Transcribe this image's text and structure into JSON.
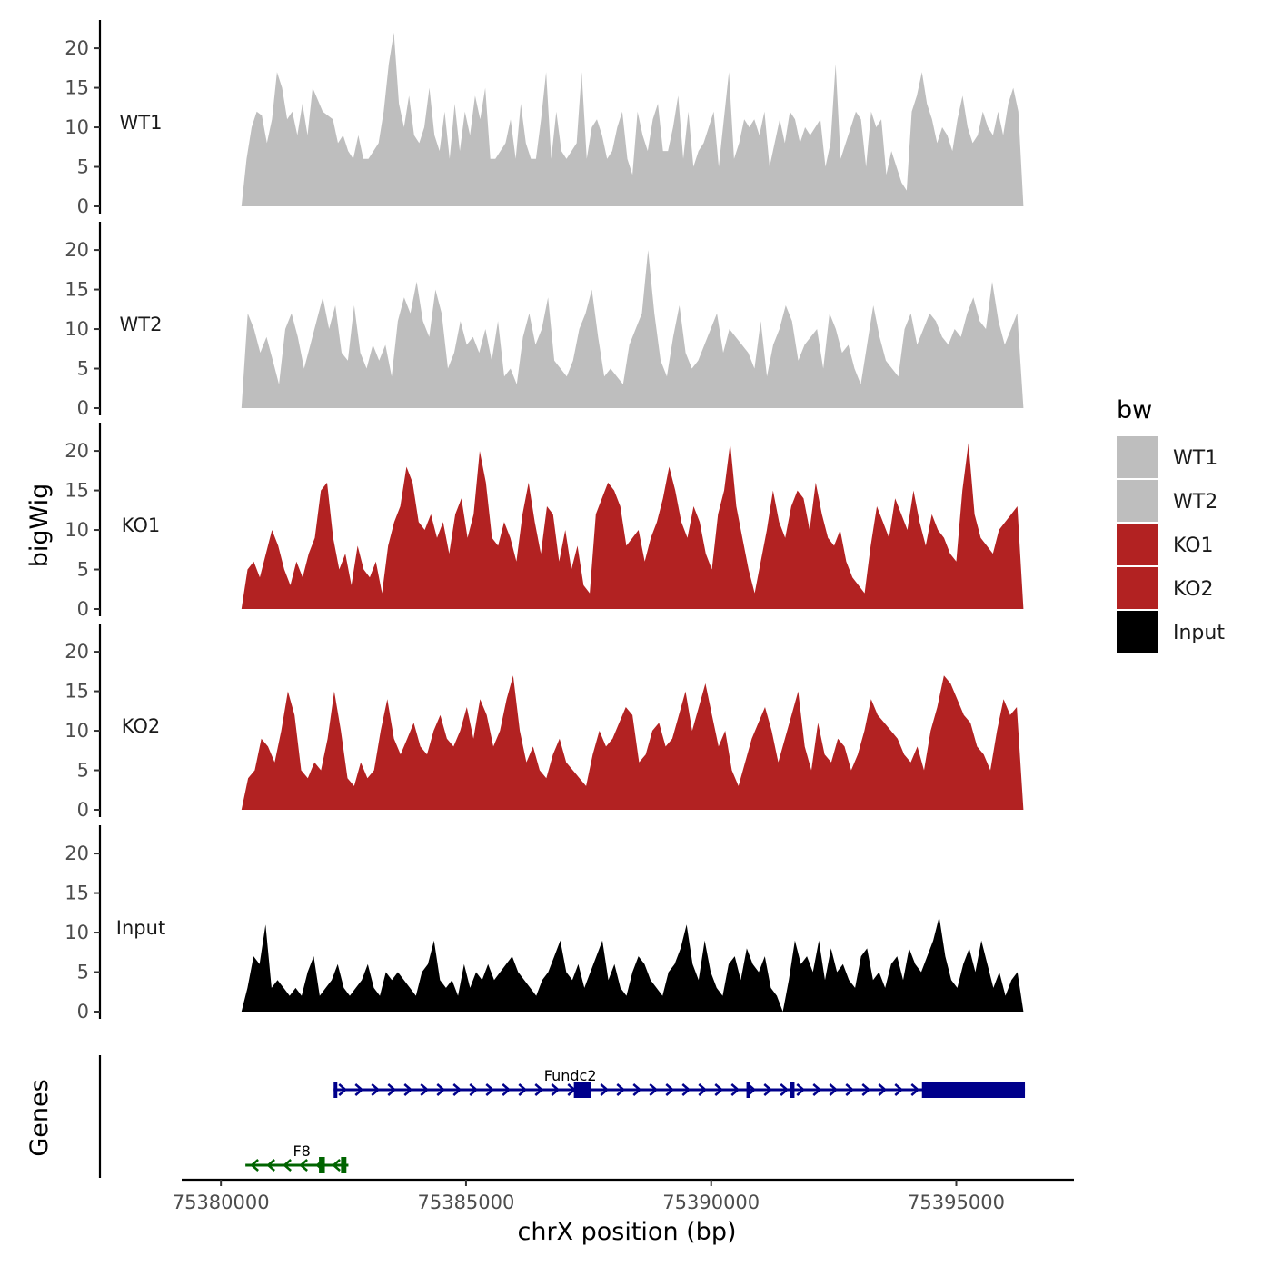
{
  "chart_data": {
    "type": "area",
    "xlabel": "chrX position (bp)",
    "ylabel": "bigWig",
    "genes_label": "Genes",
    "xlim": [
      75379200,
      75397400
    ],
    "x_ticks": [
      75380000,
      75385000,
      75390000,
      75395000
    ],
    "x_tick_labels": [
      "75380000",
      "75385000",
      "75390000",
      "75395000"
    ],
    "ylim": [
      0,
      23
    ],
    "y_ticks": [
      0,
      5,
      10,
      15,
      20
    ],
    "y_tick_labels": [
      "0",
      "5",
      "10",
      "15",
      "20"
    ],
    "legend": {
      "title": "bw",
      "position": "right",
      "entries": [
        {
          "label": "WT1",
          "color": "#bebebe"
        },
        {
          "label": "WT2",
          "color": "#bebebe"
        },
        {
          "label": "KO1",
          "color": "#b22222"
        },
        {
          "label": "KO2",
          "color": "#b22222"
        },
        {
          "label": "Input",
          "color": "#000000"
        }
      ]
    },
    "tracks": [
      {
        "name": "WT1",
        "color": "#bebebe",
        "x_start": 75380420,
        "x_end": 75396370,
        "values": [
          0,
          6,
          10,
          12,
          11.5,
          8,
          11,
          17,
          15,
          11,
          12,
          9,
          13,
          9,
          15,
          13.5,
          12,
          11.5,
          11,
          8,
          9,
          7,
          6,
          9,
          6,
          6,
          7,
          8,
          12,
          18,
          22,
          13,
          10,
          14,
          9,
          8,
          10,
          15,
          9,
          7,
          12,
          6,
          13,
          7,
          12,
          9,
          14,
          11,
          15,
          6,
          6,
          7,
          8,
          11,
          6,
          13,
          8,
          6,
          6,
          11,
          17,
          6,
          12,
          7,
          6,
          7,
          8,
          17,
          6,
          10,
          11,
          9,
          6,
          7,
          10,
          12,
          6,
          4,
          12,
          9,
          7,
          11,
          13,
          7,
          7,
          10,
          14,
          6,
          12,
          5,
          7,
          8,
          10,
          12,
          5,
          11,
          17,
          6,
          8,
          11,
          10,
          11,
          9,
          12,
          5,
          8,
          11,
          8,
          12,
          11,
          8,
          10,
          9,
          10,
          11,
          5,
          8,
          18,
          6,
          8,
          10,
          12,
          11,
          5,
          12,
          10,
          11,
          4,
          7,
          5,
          3,
          2,
          12,
          14,
          17,
          13,
          11,
          8,
          10,
          9,
          7,
          11,
          14,
          10,
          8,
          9,
          12,
          10,
          9,
          12,
          9,
          13,
          15,
          12,
          0
        ]
      },
      {
        "name": "WT2",
        "color": "#bebebe",
        "x_start": 75380420,
        "x_end": 75396370,
        "values": [
          0,
          12,
          10,
          7,
          9,
          6,
          3,
          10,
          12,
          9,
          5,
          8,
          11,
          14,
          10,
          13,
          7,
          6,
          13,
          7,
          5,
          8,
          6,
          8,
          4,
          11,
          14,
          12,
          16,
          11,
          9,
          15,
          12,
          5,
          7,
          11,
          8,
          9,
          7,
          10,
          6,
          11,
          4,
          5,
          3,
          9,
          12,
          8,
          10,
          14,
          6,
          5,
          4,
          6,
          10,
          12,
          15,
          9,
          4,
          5,
          4,
          3,
          8,
          10,
          12,
          20,
          12,
          6,
          4,
          9,
          13,
          7,
          5,
          6,
          8,
          10,
          12,
          7,
          10,
          9,
          8,
          7,
          5,
          11,
          4,
          8,
          10,
          13,
          11,
          6,
          8,
          9,
          10,
          5,
          12,
          10,
          7,
          8,
          5,
          3,
          8,
          13,
          9,
          6,
          5,
          4,
          10,
          12,
          8,
          10,
          12,
          11,
          9,
          8,
          10,
          9,
          12,
          14,
          11,
          10,
          16,
          11,
          8,
          10,
          12,
          0
        ]
      },
      {
        "name": "KO1",
        "color": "#b22222",
        "x_start": 75380420,
        "x_end": 75396370,
        "values": [
          0,
          5,
          6,
          4,
          7,
          10,
          8,
          5,
          3,
          6,
          4,
          7,
          9,
          15,
          16,
          9,
          5,
          7,
          3,
          8,
          5,
          4,
          6,
          2,
          8,
          11,
          13,
          18,
          16,
          11,
          10,
          12,
          9,
          11,
          7,
          12,
          14,
          9,
          12,
          20,
          16,
          9,
          8,
          11,
          9,
          6,
          12,
          16,
          11,
          7,
          13,
          12,
          6,
          10,
          5,
          8,
          3,
          2,
          12,
          14,
          16,
          15,
          13,
          8,
          9,
          10,
          6,
          9,
          11,
          14,
          18,
          15,
          11,
          9,
          13,
          11,
          7,
          5,
          12,
          15,
          21,
          13,
          9,
          5,
          2,
          6,
          10,
          15,
          11,
          9,
          13,
          15,
          14,
          10,
          16,
          12,
          9,
          8,
          10,
          6,
          4,
          3,
          2,
          8,
          13,
          11,
          9,
          14,
          12,
          10,
          15,
          11,
          8,
          12,
          10,
          9,
          7,
          6,
          15,
          21,
          12,
          9,
          8,
          7,
          10,
          11,
          12,
          13,
          0
        ]
      },
      {
        "name": "KO2",
        "color": "#b22222",
        "x_start": 75380420,
        "x_end": 75396370,
        "values": [
          0,
          4,
          5,
          9,
          8,
          6,
          10,
          15,
          12,
          5,
          4,
          6,
          5,
          9,
          15,
          10,
          4,
          3,
          6,
          4,
          5,
          10,
          14,
          9,
          7,
          9,
          11,
          8,
          7,
          10,
          12,
          9,
          8,
          10,
          13,
          9,
          14,
          12,
          8,
          10,
          14,
          17,
          10,
          6,
          8,
          5,
          4,
          7,
          9,
          6,
          5,
          4,
          3,
          7,
          10,
          8,
          9,
          11,
          13,
          12,
          6,
          7,
          10,
          11,
          8,
          9,
          12,
          15,
          10,
          13,
          16,
          12,
          8,
          10,
          5,
          3,
          6,
          9,
          11,
          13,
          10,
          6,
          9,
          12,
          15,
          8,
          5,
          11,
          7,
          6,
          9,
          8,
          5,
          7,
          10,
          14,
          12,
          11,
          10,
          9,
          7,
          6,
          8,
          5,
          10,
          13,
          17,
          16,
          14,
          12,
          11,
          8,
          7,
          5,
          10,
          14,
          12,
          13,
          0
        ]
      },
      {
        "name": "Input",
        "color": "#000000",
        "x_start": 75380420,
        "x_end": 75396370,
        "values": [
          0,
          3,
          7,
          6,
          11,
          3,
          4,
          3,
          2,
          3,
          2,
          5,
          7,
          2,
          3,
          4,
          6,
          3,
          2,
          3,
          4,
          6,
          3,
          2,
          5,
          4,
          5,
          4,
          3,
          2,
          5,
          6,
          9,
          4,
          3,
          4,
          2,
          6,
          3,
          5,
          4,
          6,
          4,
          5,
          6,
          7,
          5,
          4,
          3,
          2,
          4,
          5,
          7,
          9,
          5,
          4,
          6,
          3,
          5,
          7,
          9,
          4,
          6,
          3,
          2,
          5,
          7,
          6,
          4,
          3,
          2,
          5,
          6,
          8,
          11,
          6,
          4,
          9,
          5,
          3,
          2,
          6,
          7,
          4,
          8,
          6,
          5,
          7,
          3,
          2,
          0,
          4,
          9,
          6,
          7,
          5,
          9,
          4,
          8,
          5,
          6,
          4,
          3,
          7,
          8,
          4,
          5,
          3,
          6,
          7,
          4,
          8,
          6,
          5,
          7,
          9,
          12,
          7,
          4,
          3,
          6,
          8,
          5,
          9,
          6,
          3,
          5,
          2,
          4,
          5,
          0
        ]
      }
    ],
    "genes": [
      {
        "name": "Fundc2",
        "strand": "+",
        "color": "#00008b",
        "start": 75382300,
        "end": 75396400,
        "exons": [
          [
            75382300,
            75382340
          ],
          [
            75387200,
            75387550
          ],
          [
            75390720,
            75390760
          ],
          [
            75391600,
            75391700
          ],
          [
            75394300,
            75396400
          ]
        ]
      },
      {
        "name": "F8",
        "strand": "-",
        "color": "#006400",
        "start": 75380500,
        "end": 75382600,
        "exons": [
          [
            75382000,
            75382120
          ],
          [
            75382450,
            75382560
          ]
        ]
      }
    ]
  }
}
